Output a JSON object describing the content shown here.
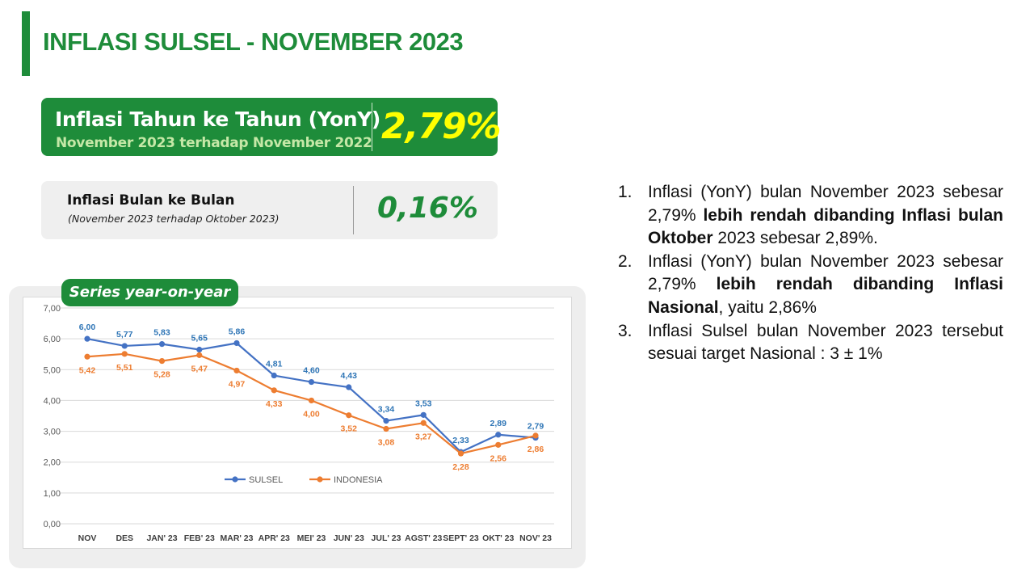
{
  "page": {
    "title": "INFLASI SULSEL  - NOVEMBER 2023"
  },
  "yoy": {
    "title": "Inflasi Tahun ke Tahun (YonY)",
    "subtitle": "November 2023 terhadap November 2022",
    "value": "2,79%"
  },
  "mom": {
    "title": "Inflasi Bulan ke Bulan",
    "subtitle": "(November 2023 terhadap Oktober 2023)",
    "value": "0,16%"
  },
  "chart_header": "Series year-on-year",
  "notes": [
    {
      "num": "1.",
      "parts": [
        {
          "text": "Inflasi (YonY) bulan November 2023 sebesar 2,79% ",
          "bold": false
        },
        {
          "text": "lebih rendah dibanding Inflasi bulan Oktober",
          "bold": true
        },
        {
          "text": " 2023 sebesar 2,89%.",
          "bold": false
        }
      ]
    },
    {
      "num": "2.",
      "parts": [
        {
          "text": " Inflasi (YonY) bulan November 2023 sebesar 2,79% ",
          "bold": false
        },
        {
          "text": "lebih rendah dibanding Inflasi Nasional",
          "bold": true
        },
        {
          "text": ", yaitu 2,86%",
          "bold": false
        }
      ]
    },
    {
      "num": "3.",
      "parts": [
        {
          "text": "Inflasi Sulsel bulan November 2023 tersebut sesuai target Nasional : 3 ± 1%",
          "bold": false
        }
      ]
    }
  ],
  "chart_data": {
    "type": "line",
    "title": "",
    "xlabel": "",
    "ylabel": "",
    "categories": [
      "NOV",
      "DES",
      "JAN' 23",
      "FEB' 23",
      "MAR' 23",
      "APR' 23",
      "MEI' 23",
      "JUN' 23",
      "JUL' 23",
      "AGST' 23",
      "SEPT' 23",
      "OKT' 23",
      "NOV' 23"
    ],
    "ylim": [
      0,
      7
    ],
    "yticks": [
      "0,00",
      "1,00",
      "2,00",
      "3,00",
      "4,00",
      "5,00",
      "6,00",
      "7,00"
    ],
    "grid": true,
    "legend_position": "inside-lower-center",
    "series": [
      {
        "name": "SULSEL",
        "color": "#4472c4",
        "label_color": "#2e75b6",
        "values": [
          6.0,
          5.77,
          5.83,
          5.65,
          5.86,
          4.81,
          4.6,
          4.43,
          3.34,
          3.53,
          2.33,
          2.89,
          2.79
        ],
        "labels": [
          "6,00",
          "5,77",
          "5,83",
          "5,65",
          "5,86",
          "4,81",
          "4,60",
          "4,43",
          "3,34",
          "3,53",
          "2,33",
          "2,89",
          "2,79"
        ]
      },
      {
        "name": "INDONESIA",
        "color": "#ed7d31",
        "label_color": "#ed7d31",
        "values": [
          5.42,
          5.51,
          5.28,
          5.47,
          4.97,
          4.33,
          4.0,
          3.52,
          3.08,
          3.27,
          2.28,
          2.56,
          2.86
        ],
        "labels": [
          "5,42",
          "5,51",
          "5,28",
          "5,47",
          "4,97",
          "4,33",
          "4,00",
          "3,52",
          "3,08",
          "3,27",
          "2,28",
          "2,56",
          "2,86"
        ]
      }
    ]
  }
}
